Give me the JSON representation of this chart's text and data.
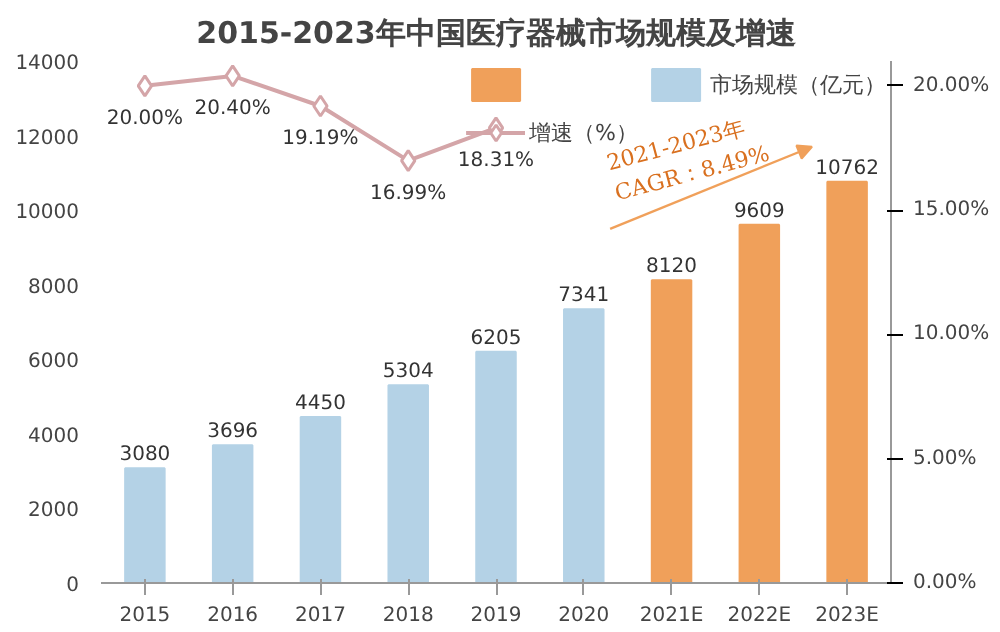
{
  "chart_data": {
    "type": "bar",
    "title": "2015-2023年中国医疗器械市场规模及增速",
    "categories": [
      "2015",
      "2016",
      "2017",
      "2018",
      "2019",
      "2020",
      "2021E",
      "2022E",
      "2023E"
    ],
    "series": [
      {
        "color": "#f0a05a",
        "values": [
          null,
          null,
          null,
          null,
          null,
          null,
          8120,
          9609,
          10762
        ]
      },
      {
        "name": "市场规模（亿元）",
        "color": "#b4d2e6",
        "values": [
          3080,
          3696,
          4450,
          5304,
          6205,
          7341,
          null,
          null,
          null
        ]
      },
      {
        "name": "增速（%）",
        "type": "line",
        "axis": "y2",
        "color": "#d4a5a8",
        "marker": "diamond",
        "values": [
          20.0,
          20.4,
          19.19,
          16.99,
          18.31,
          null,
          null,
          null,
          null
        ],
        "value_labels": [
          "20.00%",
          "20.40%",
          "19.19%",
          "16.99%",
          "18.31%",
          null,
          null,
          null,
          null
        ]
      }
    ],
    "ylim": [
      0,
      14000
    ],
    "yticks": [
      0,
      2000,
      4000,
      6000,
      8000,
      10000,
      12000,
      14000
    ],
    "y2lim": [
      0,
      21
    ],
    "y2ticks": [
      {
        "value": 0,
        "label": "0.00%"
      },
      {
        "value": 5,
        "label": "5.00%"
      },
      {
        "value": 10,
        "label": "10.00%"
      },
      {
        "value": 15,
        "label": "15.00%"
      },
      {
        "value": 20,
        "label": "20.00%"
      }
    ],
    "data_labels": true,
    "legend": "top right",
    "annotations": [
      "2021-2023年\nCAGR：8.49%"
    ]
  }
}
